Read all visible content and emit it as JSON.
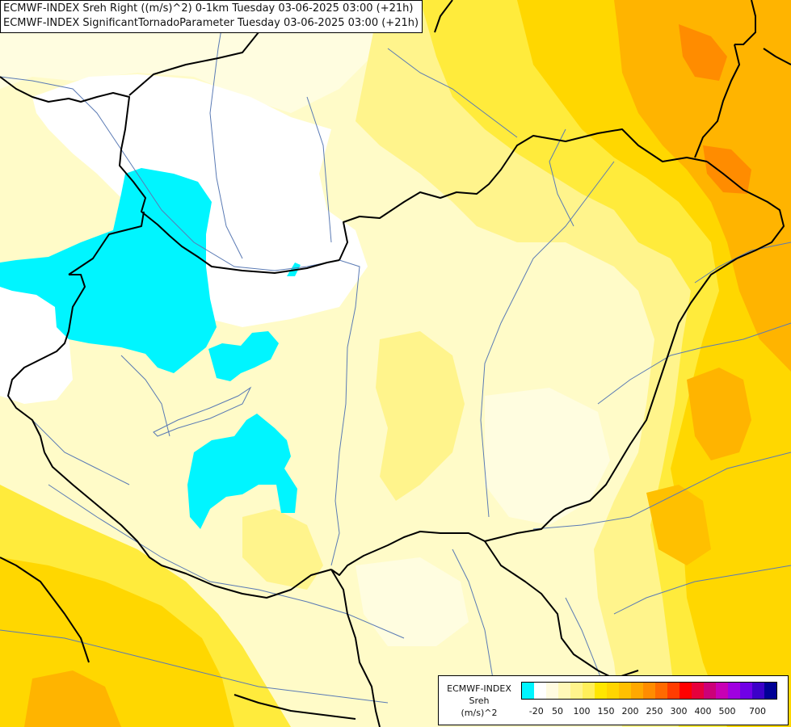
{
  "titles": [
    "ECMWF-INDEX Sreh Right ((m/s)^2) 0-1km Tuesday 03-06-2025 03:00 (+21h)",
    "ECMWF-INDEX SignificantTornadoParameter Tuesday 03-06-2025 03:00 (+21h)"
  ],
  "legend": {
    "head": [
      "ECMWF-INDEX",
      "Sreh",
      "(m/s)^2"
    ],
    "colors": [
      "#00f5ff",
      "#ffffff",
      "#fffbe0",
      "#fff8b8",
      "#fff48c",
      "#ffef5a",
      "#ffe600",
      "#ffd500",
      "#ffc000",
      "#ffa800",
      "#ff8c00",
      "#ff6a00",
      "#ff3c00",
      "#ff0000",
      "#e6003c",
      "#cc0078",
      "#c800b4",
      "#a000e0",
      "#7000e6",
      "#3c00c8",
      "#000096"
    ],
    "ticks": [
      "-20",
      "50",
      "100",
      "150",
      "200",
      "250",
      "300",
      "400",
      "500",
      "700"
    ]
  },
  "colors": {
    "background": "#fffbc8",
    "pale": "#fffde0",
    "cyan": "#00f5ff",
    "white": "#ffffff",
    "yellow": "#fff48c",
    "yellow_mid": "#ffeb3c",
    "gold": "#ffd700",
    "orange": "#ffb400",
    "deep_orange": "#ff8c00",
    "border": "#000000",
    "river": "#5a7ab4"
  }
}
